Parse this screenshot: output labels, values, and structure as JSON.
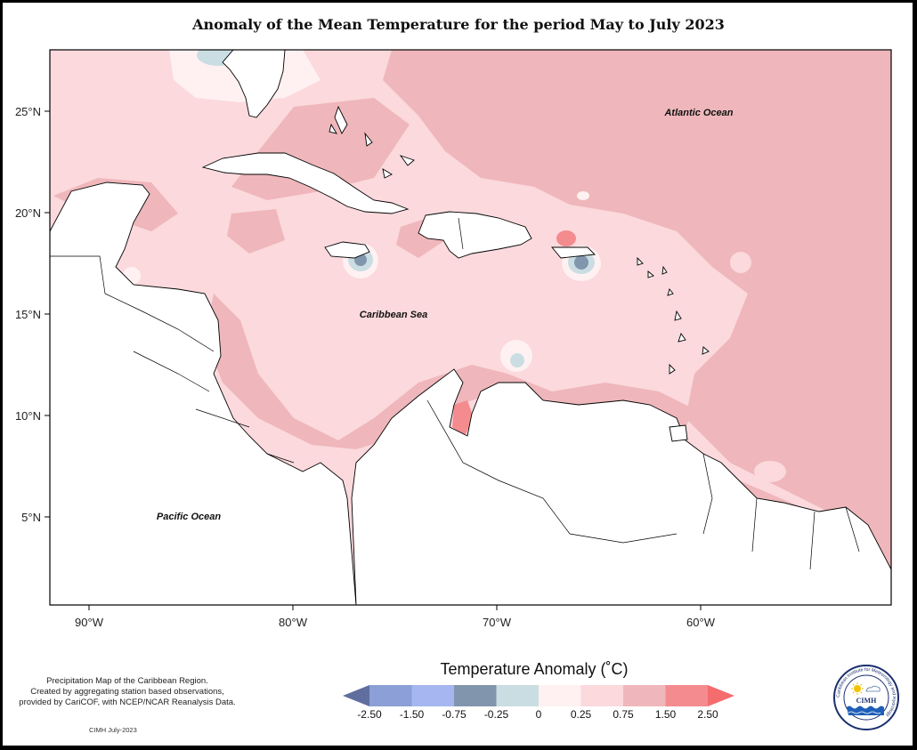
{
  "title": "Anomaly of the Mean Temperature for the period May to July 2023",
  "map": {
    "lat_ticks": [
      "25°N",
      "20°N",
      "15°N",
      "10°N",
      "5°N"
    ],
    "lon_ticks": [
      "90°W",
      "80°W",
      "70°W",
      "60°W"
    ],
    "places": {
      "atlantic": "Atlantic Ocean",
      "caribbean": "Caribbean Sea",
      "pacific": "Pacific Ocean"
    }
  },
  "legend": {
    "title": "Temperature Anomaly (˚C)",
    "labels": [
      "-2.50",
      "-1.50",
      "-0.75",
      "-0.25",
      "0",
      "0.25",
      "0.75",
      "1.50",
      "2.50"
    ],
    "colors": [
      "#5f6e9e",
      "#8c9fd6",
      "#a5b6f0",
      "#8196ad",
      "#cadde2",
      "#fff1f1",
      "#fbd9dd",
      "#efb7bb",
      "#f48b8f",
      "#f46c6e"
    ]
  },
  "credits": {
    "line1": "Precipitation Map of the Caribbean Region.",
    "line2": "Created by aggregating station based observations,",
    "line3": "provided by CariCOF, with NCEP/NCAR Reanalysis Data.",
    "date": "CIMH July-2023"
  },
  "logo": {
    "abbr": "CIMH",
    "ring_text": "Caribbean Institute for Meteorology and Hydrology"
  }
}
